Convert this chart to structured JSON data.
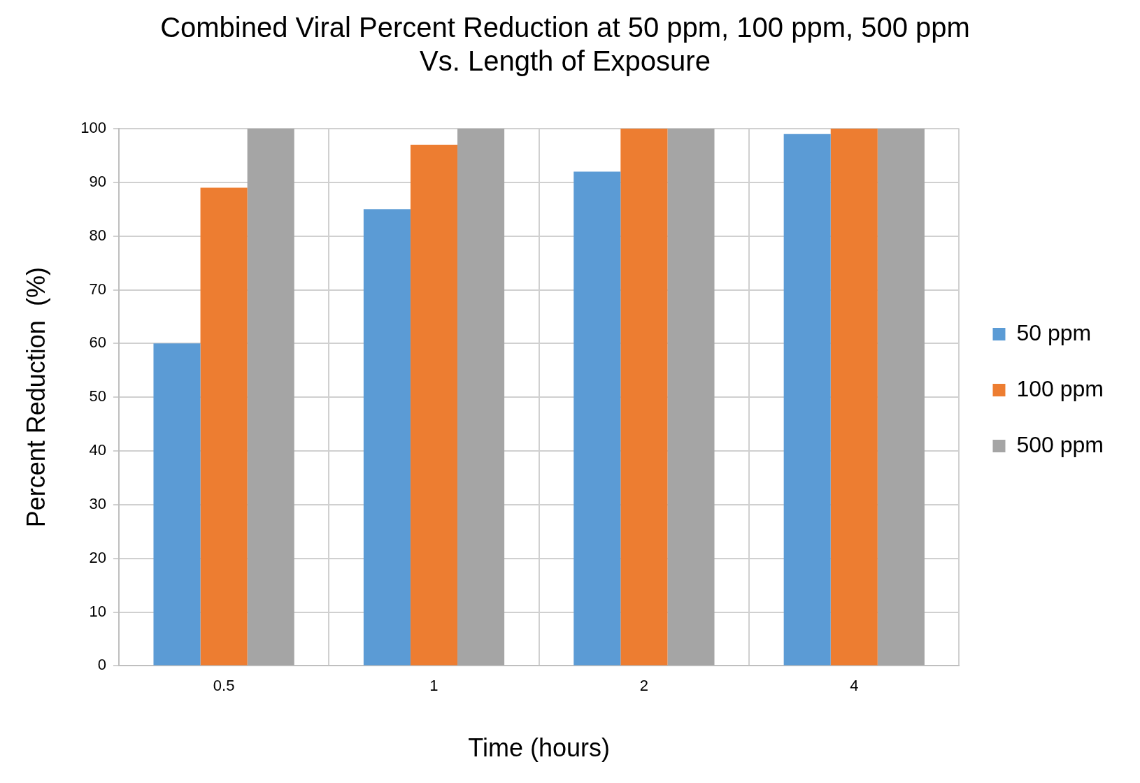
{
  "chart_data": {
    "type": "bar",
    "title": "Combined Viral Percent Reduction at 50 ppm, 100 ppm, 500 ppm\nVs. Length of Exposure",
    "xlabel": "Time (hours)",
    "ylabel": "Percent Reduction  (%)",
    "categories": [
      "0.5",
      "1",
      "2",
      "4"
    ],
    "series": [
      {
        "name": "50 ppm",
        "color": "#5b9bd5",
        "values": [
          60,
          85,
          92,
          99
        ]
      },
      {
        "name": "100 ppm",
        "color": "#ed7d31",
        "values": [
          89,
          97,
          100,
          100
        ]
      },
      {
        "name": "500 ppm",
        "color": "#a5a5a5",
        "values": [
          100,
          100,
          100,
          100
        ]
      }
    ],
    "ylim": [
      0,
      100
    ],
    "yticks": [
      0,
      10,
      20,
      30,
      40,
      50,
      60,
      70,
      80,
      90,
      100
    ],
    "grid": true,
    "legend": "right"
  }
}
